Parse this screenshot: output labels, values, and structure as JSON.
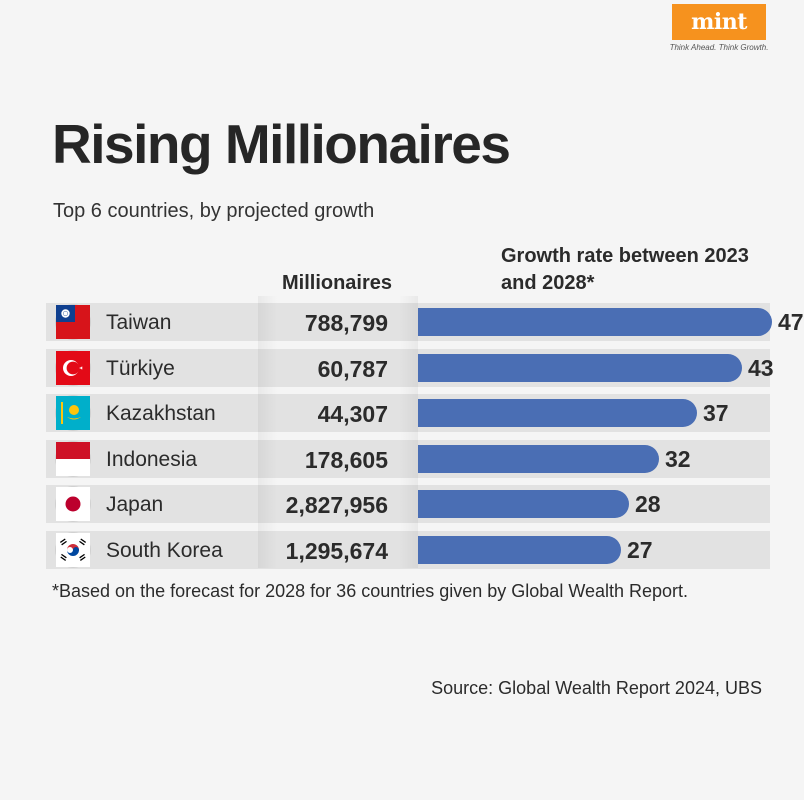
{
  "brand": {
    "logo": "mint",
    "tagline": "Think Ahead. Think Growth."
  },
  "header": {
    "title": "Rising Millionaires",
    "subtitle": "Top 6 countries, by projected growth"
  },
  "columns": {
    "millionaires": "Millionaires",
    "growth": "Growth rate between 2023 and 2028*"
  },
  "chart_data": {
    "type": "bar",
    "title": "Rising Millionaires",
    "subtitle": "Top 6 countries, by projected growth",
    "categories": [
      "Taiwan",
      "Türkiye",
      "Kazakhstan",
      "Indonesia",
      "Japan",
      "South Korea"
    ],
    "millionaires": [
      "788,799",
      "60,787",
      "44,307",
      "178,605",
      "2,827,956",
      "1,295,674"
    ],
    "values": [
      47,
      43,
      37,
      32,
      28,
      27
    ],
    "xlabel": "Growth rate between 2023 and 2028*",
    "ylabel": "",
    "xlim": [
      0,
      47
    ]
  },
  "flags": [
    "taiwan-flag-icon",
    "turkiye-flag-icon",
    "kazakhstan-flag-icon",
    "indonesia-flag-icon",
    "japan-flag-icon",
    "south-korea-flag-icon"
  ],
  "colors": {
    "bar": "#4a6eb4",
    "row_bg": "#e2e2e2",
    "logo_bg": "#f6921e"
  },
  "footnote": "*Based on the forecast for 2028 for 36 countries given by Global Wealth Report.",
  "source": "Source: Global Wealth Report 2024, UBS"
}
